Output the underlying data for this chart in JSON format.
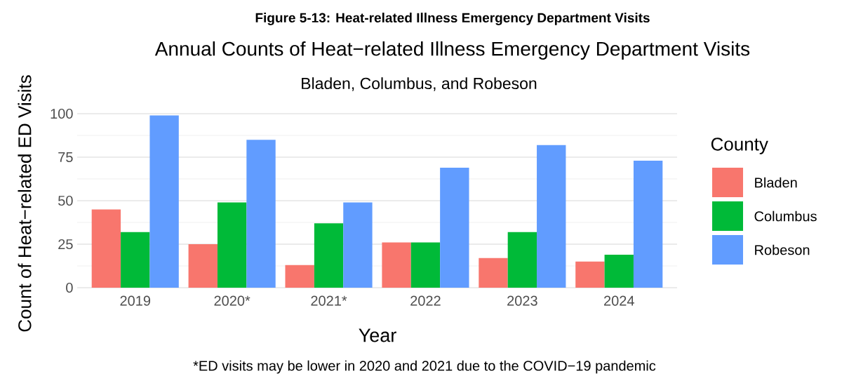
{
  "chart_data": {
    "type": "bar",
    "title": "Figure 5-13: Heat-related Illness Emergency Department Visits",
    "subtitle": "Annual Counts of Heat−related Illness Emergency Department Visits",
    "annotations": [
      "Bladen, Columbus, and Robeson",
      "*ED visits may be lower in 2020 and 2021 due to the COVID−19 pandemic"
    ],
    "xlabel": "Year",
    "ylabel": "Count of Heat−related ED Visits",
    "legend_title": "County",
    "categories": [
      "2019",
      "2020*",
      "2021*",
      "2022",
      "2023",
      "2024"
    ],
    "series": [
      {
        "name": "Bladen",
        "color": "#f8766d",
        "values": [
          45,
          25,
          13,
          26,
          17,
          15
        ]
      },
      {
        "name": "Columbus",
        "color": "#00ba38",
        "values": [
          32,
          49,
          37,
          26,
          32,
          19
        ]
      },
      {
        "name": "Robeson",
        "color": "#619cff",
        "values": [
          99,
          85,
          49,
          69,
          82,
          73
        ]
      }
    ],
    "ylim": [
      0,
      100
    ],
    "yticks": [
      0,
      25,
      50,
      75,
      100
    ],
    "grid": "y",
    "legend": "right"
  }
}
